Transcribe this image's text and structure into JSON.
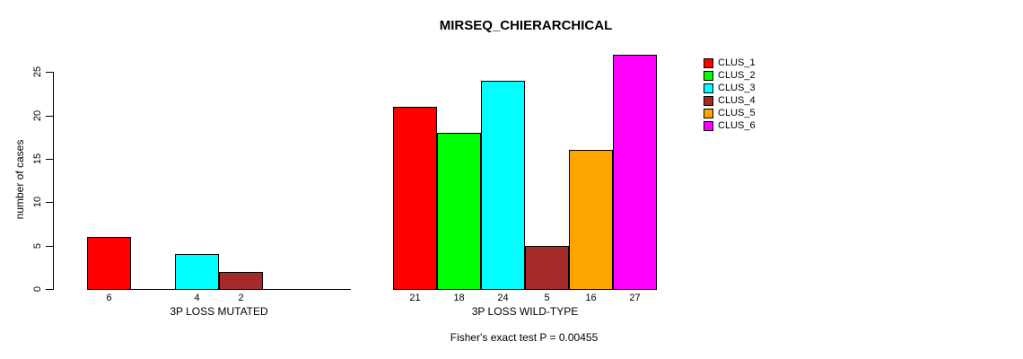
{
  "chart_data": {
    "type": "bar",
    "title": "MIRSEQ_CHIERARCHICAL",
    "ylabel": "number of cases",
    "xlabel": "",
    "ylim": [
      0,
      27
    ],
    "yticks": [
      0,
      5,
      10,
      15,
      20,
      25
    ],
    "grid": false,
    "legend_position": "right",
    "bar_border_color": "#000000",
    "axis_color": "#000000",
    "text_color": "#000000",
    "series_names": [
      "CLUS_1",
      "CLUS_2",
      "CLUS_3",
      "CLUS_4",
      "CLUS_5",
      "CLUS_6"
    ],
    "series_colors": [
      "#FF0000",
      "#00FF00",
      "#00FFFF",
      "#A52A2A",
      "#FFA500",
      "#FF00FF"
    ],
    "legend": [
      {
        "label": "CLUS_1",
        "color": "#FF0000"
      },
      {
        "label": "CLUS_2",
        "color": "#00FF00"
      },
      {
        "label": "CLUS_3",
        "color": "#00FFFF"
      },
      {
        "label": "CLUS_4",
        "color": "#A52A2A"
      },
      {
        "label": "CLUS_5",
        "color": "#FFA500"
      },
      {
        "label": "CLUS_6",
        "color": "#FF00FF"
      }
    ],
    "groups": [
      {
        "label": "3P LOSS MUTATED",
        "values": [
          6,
          0,
          4,
          2,
          0,
          0
        ],
        "bar_labels": [
          "6",
          "",
          "4",
          "2",
          "",
          ""
        ]
      },
      {
        "label": "3P LOSS WILD-TYPE",
        "values": [
          21,
          18,
          24,
          5,
          16,
          27
        ],
        "bar_labels": [
          "21",
          "18",
          "24",
          "5",
          "16",
          "27"
        ]
      }
    ],
    "annotation": "Fisher's exact test P = 0.00455"
  }
}
